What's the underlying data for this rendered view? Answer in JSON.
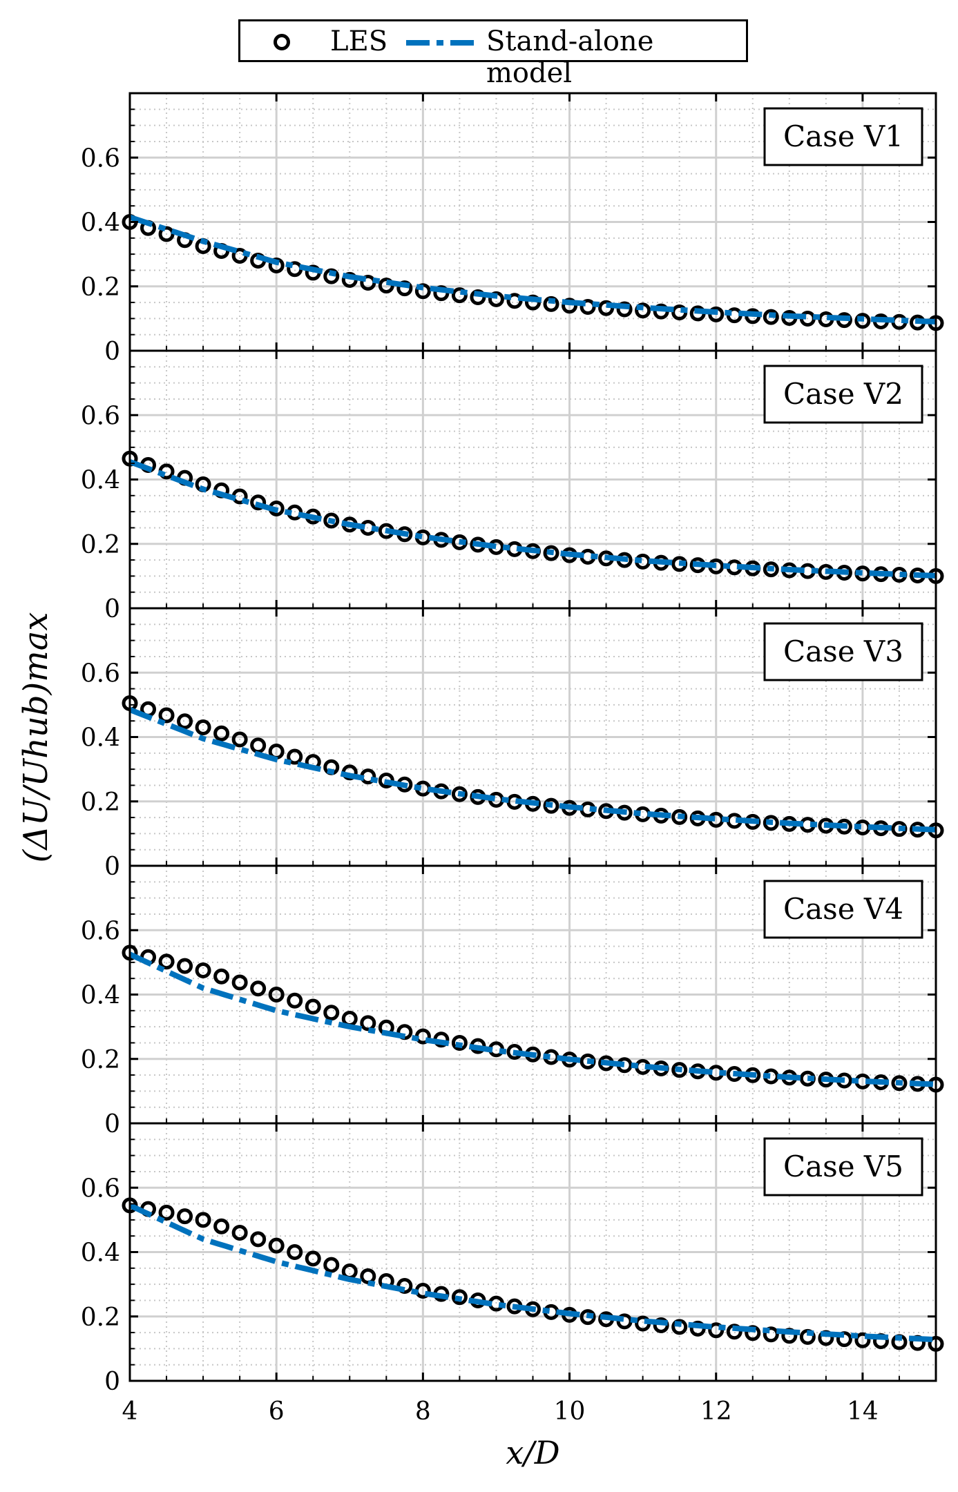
{
  "legend": {
    "les_label": "LES",
    "model_label": "Stand-alone model"
  },
  "colors": {
    "model_line": "#0072bd",
    "les_marker": "#000000",
    "grid_major": "#d0d0d0",
    "grid_minor": "#c6c6c6"
  },
  "chart_data": {
    "type": "line",
    "xlabel": "x/D",
    "ylabel": "(ΔU/Uhub)max",
    "xlim": [
      4,
      15
    ],
    "ylim": [
      0,
      0.8
    ],
    "x_ticks": [
      "4",
      "6",
      "8",
      "10",
      "12",
      "14"
    ],
    "x_tick_values": [
      4,
      6,
      8,
      10,
      12,
      14
    ],
    "y_ticks": [
      "0",
      "0.2",
      "0.4",
      "0.6"
    ],
    "y_tick_values": [
      0,
      0.2,
      0.4,
      0.6
    ],
    "grid": true,
    "x": [
      4,
      5,
      6,
      7,
      8,
      9,
      10,
      11,
      12,
      13,
      14,
      15
    ],
    "panels": [
      {
        "label": "Case V1",
        "series": [
          {
            "name": "LES",
            "style": "markers",
            "values": [
              0.4,
              0.325,
              0.265,
              0.22,
              0.185,
              0.16,
              0.14,
              0.125,
              0.113,
              0.102,
              0.093,
              0.086
            ]
          },
          {
            "name": "Stand-alone model",
            "style": "dashdot",
            "values": [
              0.415,
              0.34,
              0.275,
              0.23,
              0.196,
              0.17,
              0.15,
              0.134,
              0.12,
              0.108,
              0.099,
              0.09
            ]
          }
        ]
      },
      {
        "label": "Case V2",
        "series": [
          {
            "name": "LES",
            "style": "markers",
            "values": [
              0.465,
              0.385,
              0.31,
              0.26,
              0.22,
              0.19,
              0.165,
              0.145,
              0.13,
              0.118,
              0.108,
              0.1
            ]
          },
          {
            "name": "Stand-alone model",
            "style": "dashdot",
            "values": [
              0.455,
              0.37,
              0.305,
              0.26,
              0.222,
              0.192,
              0.168,
              0.148,
              0.133,
              0.12,
              0.11,
              0.101
            ]
          }
        ]
      },
      {
        "label": "Case V3",
        "series": [
          {
            "name": "LES",
            "style": "markers",
            "values": [
              0.505,
              0.43,
              0.355,
              0.29,
              0.24,
              0.205,
              0.18,
              0.16,
              0.143,
              0.13,
              0.119,
              0.11
            ]
          },
          {
            "name": "Stand-alone model",
            "style": "dashdot",
            "values": [
              0.485,
              0.395,
              0.33,
              0.28,
              0.24,
              0.208,
              0.183,
              0.162,
              0.146,
              0.132,
              0.121,
              0.112
            ]
          }
        ]
      },
      {
        "label": "Case V4",
        "series": [
          {
            "name": "LES",
            "style": "markers",
            "values": [
              0.53,
              0.475,
              0.4,
              0.325,
              0.27,
              0.23,
              0.198,
              0.175,
              0.157,
              0.142,
              0.13,
              0.12
            ]
          },
          {
            "name": "Stand-alone model",
            "style": "dashdot",
            "values": [
              0.525,
              0.42,
              0.35,
              0.3,
              0.26,
              0.226,
              0.199,
              0.177,
              0.158,
              0.143,
              0.131,
              0.121
            ]
          }
        ]
      },
      {
        "label": "Case V5",
        "series": [
          {
            "name": "LES",
            "style": "markers",
            "values": [
              0.545,
              0.5,
              0.42,
              0.34,
              0.28,
              0.24,
              0.205,
              0.178,
              0.157,
              0.14,
              0.126,
              0.115
            ]
          },
          {
            "name": "Stand-alone model",
            "style": "dashdot",
            "values": [
              0.545,
              0.44,
              0.37,
              0.315,
              0.272,
              0.237,
              0.209,
              0.186,
              0.167,
              0.152,
              0.139,
              0.128
            ]
          }
        ]
      }
    ]
  }
}
